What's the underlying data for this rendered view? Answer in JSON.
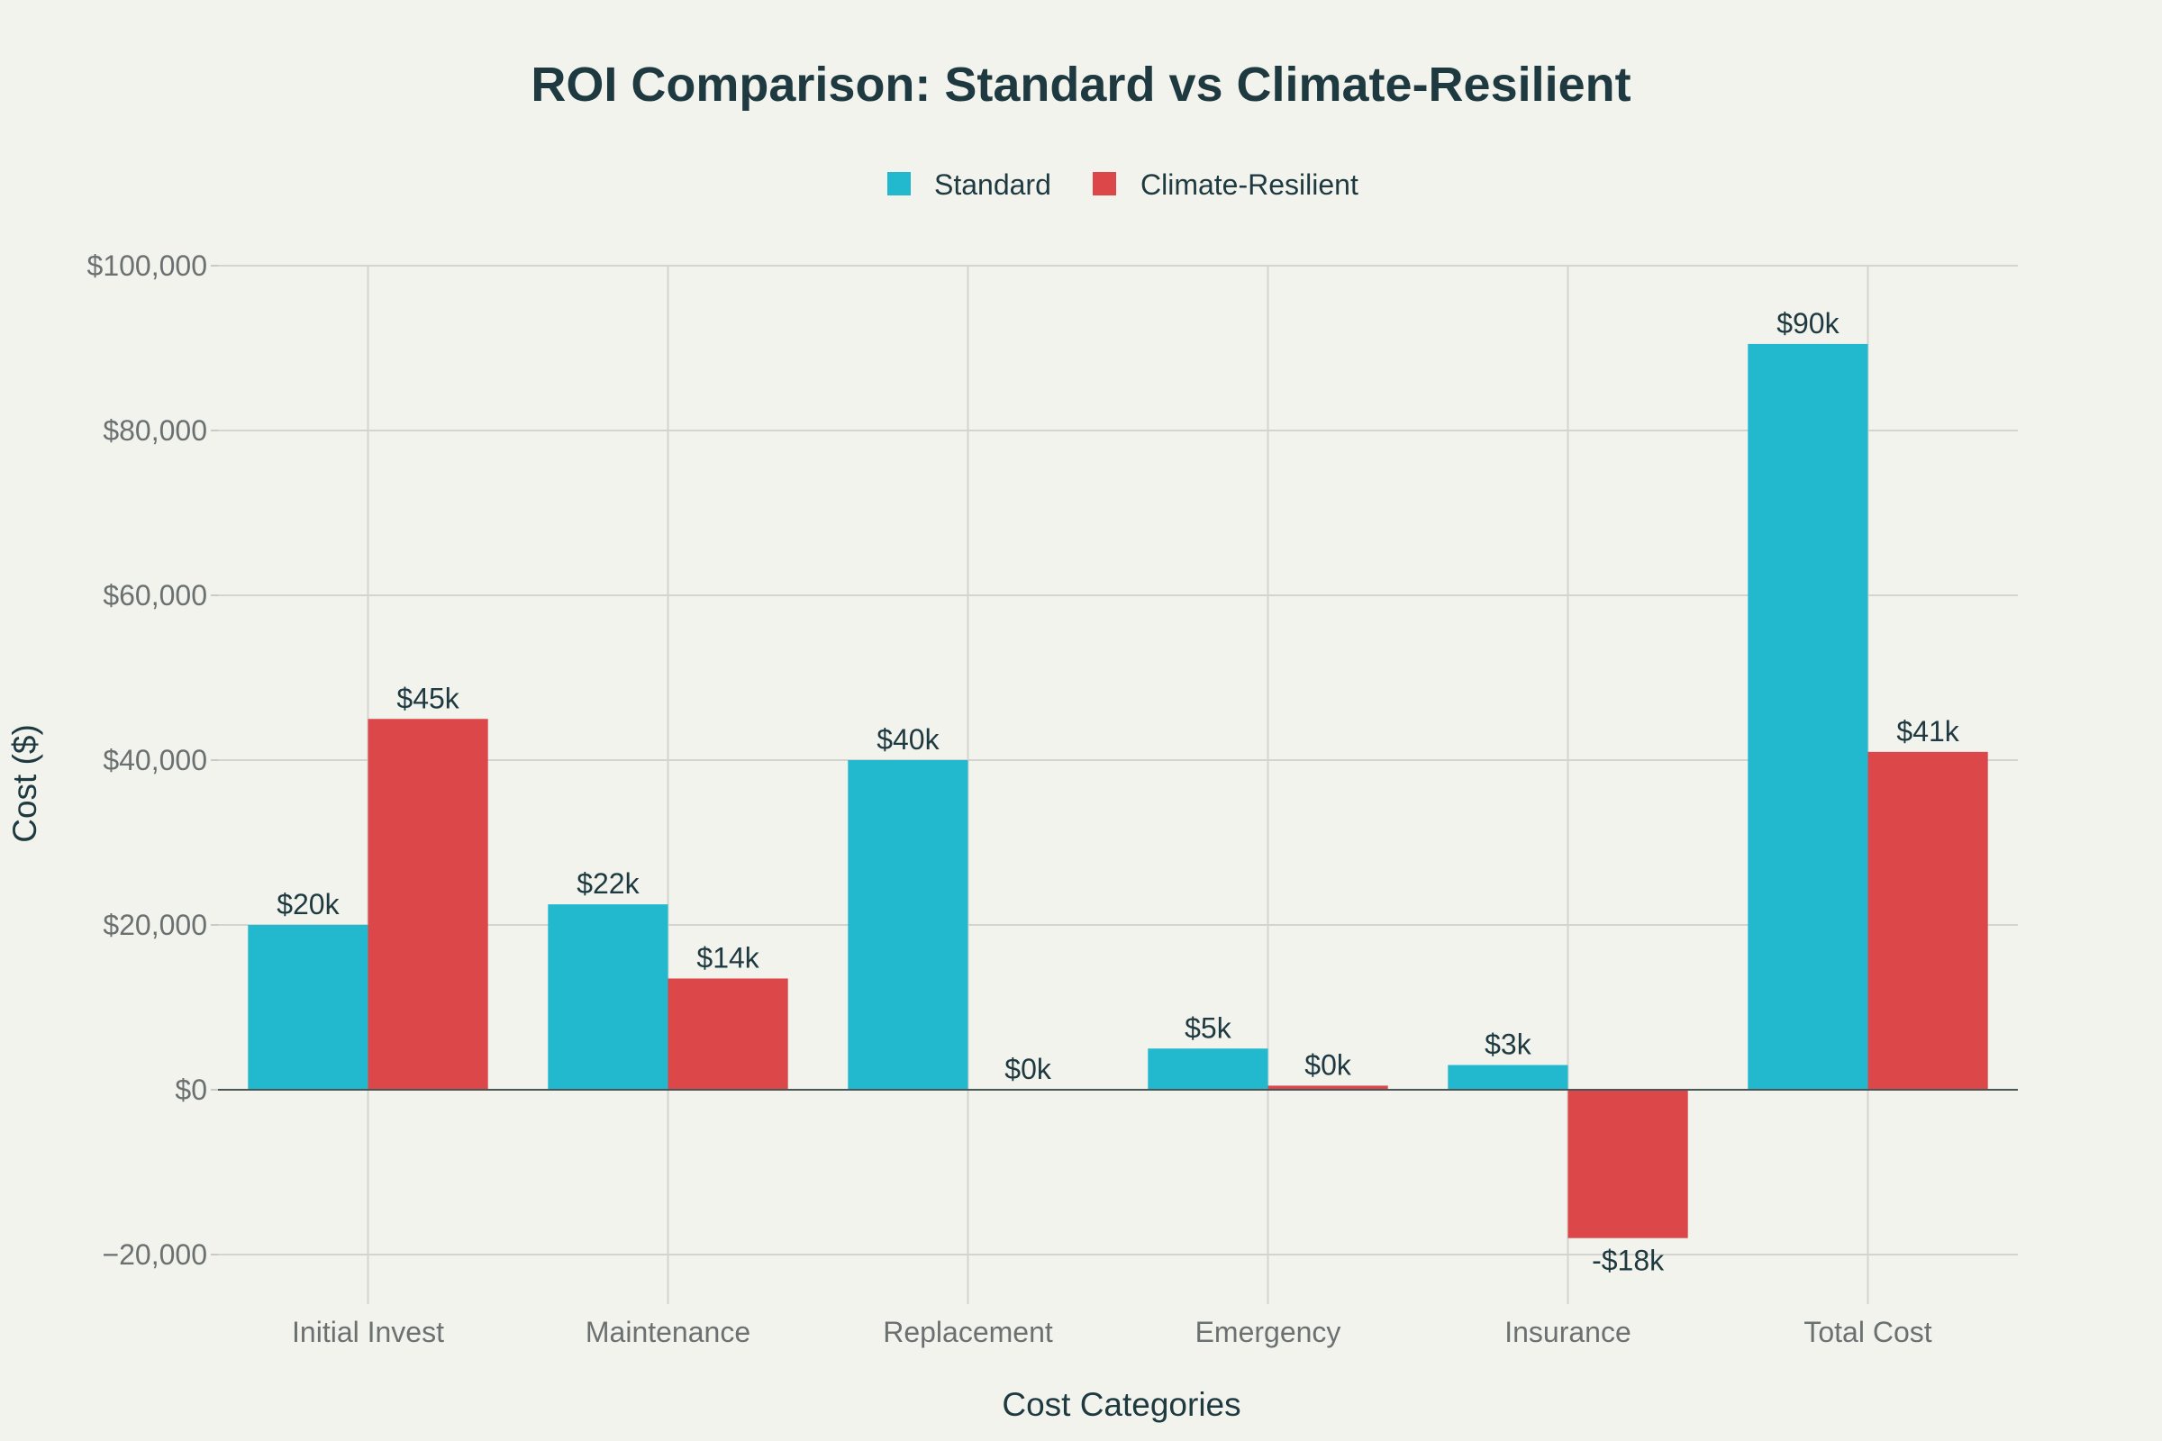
{
  "chart_data": {
    "type": "bar",
    "title": "ROI Comparison: Standard vs Climate-Resilient",
    "xlabel": "Cost Categories",
    "ylabel": "Cost ($)",
    "categories": [
      "Initial Invest",
      "Maintenance",
      "Replacement",
      "Emergency",
      "Insurance",
      "Total Cost"
    ],
    "series": [
      {
        "name": "Standard",
        "color": "#22B8CD",
        "values": [
          20000,
          22500,
          40000,
          5000,
          3000,
          90500
        ],
        "labels": [
          "$20k",
          "$22k",
          "$40k",
          "$5k",
          "$3k",
          "$90k"
        ]
      },
      {
        "name": "Climate-Resilient",
        "color": "#DC4749",
        "values": [
          45000,
          13500,
          0,
          500,
          -18000,
          41000
        ],
        "labels": [
          "$45k",
          "$14k",
          "$0k",
          "$0k",
          "-$18k",
          "$41k"
        ]
      }
    ],
    "ylim": [
      -25000,
      100000
    ],
    "yticks": [
      -20000,
      0,
      20000,
      40000,
      60000,
      80000,
      100000
    ],
    "ytick_labels": [
      "−20,000",
      "$0",
      "$20,000",
      "$40,000",
      "$60,000",
      "$80,000",
      "$100,000"
    ],
    "grid": true,
    "legend_position": "top-center"
  }
}
